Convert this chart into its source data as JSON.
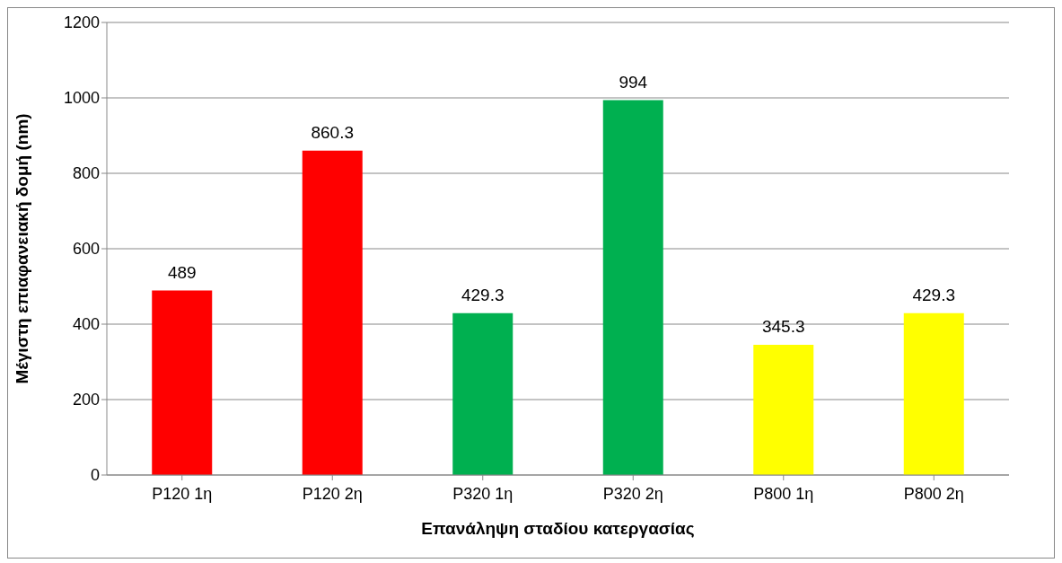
{
  "chart_data": {
    "type": "bar",
    "xlabel": "Επανάληψη σταδίου κατεργασίας",
    "ylabel": "Μέγιστη επιαφανειακή δομή (nm)",
    "categories": [
      "P120 1η",
      "P120 2η",
      "P320 1η",
      "P320 2η",
      "P800 1η",
      "P800 2η"
    ],
    "values": [
      489,
      860.3,
      429.3,
      994,
      345.3,
      429.3
    ],
    "colors": [
      "#ff0000",
      "#ff0000",
      "#00b050",
      "#00b050",
      "#ffff00",
      "#ffff00"
    ],
    "ylim": [
      0,
      1200
    ],
    "yticks": [
      0,
      200,
      400,
      600,
      800,
      1000,
      1200
    ],
    "grid": "y",
    "data_labels": true
  }
}
